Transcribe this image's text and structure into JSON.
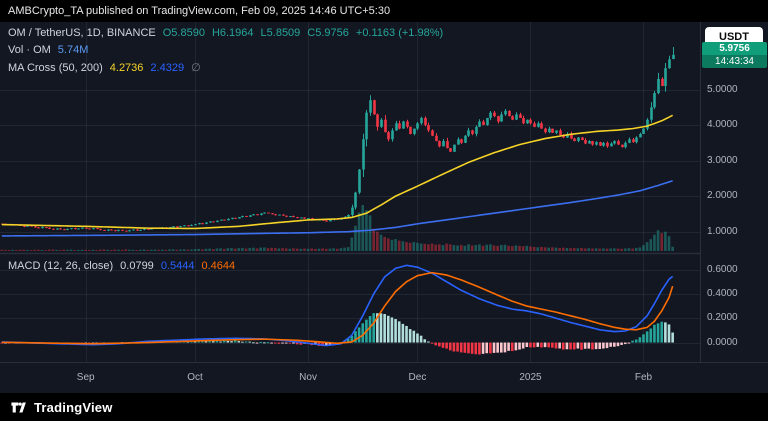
{
  "top_bar": {
    "text": "AMBCrypto_TA published on TradingView.com, Feb 09, 2025 14:46 UTC+5:30"
  },
  "legend": {
    "symbol": "OM / TetherUS, 1D, BINANCE",
    "ohlc": [
      "O5.8590",
      "H6.1964",
      "L5.8509",
      "C5.9756",
      "+0.1163 (+1.98%)"
    ],
    "volume_label": "Vol · OM",
    "volume_value": "5.74M",
    "ma_cross_label": "MA Cross (50, 200)",
    "ma50_value": "4.2736",
    "ma200_value": "2.4329",
    "ma_null": "∅"
  },
  "macd_legend": {
    "label": "MACD (12, 26, close)",
    "hist_value": "0.0799",
    "macd_value": "0.5444",
    "signal_value": "0.4644"
  },
  "price_scale": {
    "currency_button": "USDT",
    "labels": [
      "5.0000",
      "4.0000",
      "3.0000",
      "2.0000",
      "1.0000"
    ],
    "last_price": "5.9756",
    "countdown": "14:43:34"
  },
  "macd_scale": {
    "labels": [
      "0.6000",
      "0.4000",
      "0.2000",
      "0.0000"
    ]
  },
  "time_axis": {
    "labels": [
      {
        "text": "Sep",
        "day": 23
      },
      {
        "text": "Oct",
        "day": 53
      },
      {
        "text": "Nov",
        "day": 84
      },
      {
        "text": "Dec",
        "day": 114
      },
      {
        "text": "2025",
        "day": 145
      },
      {
        "text": "Feb",
        "day": 176
      }
    ]
  },
  "footer": {
    "brand": "TradingView"
  },
  "colors": {
    "bg": "#131722",
    "border": "#2a2e39",
    "text": "#d1d4dc",
    "axis_text": "#b2b5be",
    "muted": "#787b86",
    "up": "#26a69a",
    "down": "#f23645",
    "vol_up": "rgba(38,166,154,0.45)",
    "vol_down": "rgba(242,54,69,0.45)",
    "ma50": "#f5d327",
    "ma200": "#3b6ff0",
    "macd_line": "#2962ff",
    "signal_line": "#ff6d00",
    "hist_up": "#26a69a",
    "hist_up_weak": "#b2dfdb",
    "hist_down": "#f23645",
    "hist_down_weak": "#fcc6cd",
    "grid": "rgba(134,150,170,0.12)",
    "badge": "#0f9d7a",
    "badge_dark": "#0b7a5e",
    "vol_value": "#5b9cf6"
  },
  "chart_data": {
    "type": "candlestick",
    "title": "OM / TetherUS, 1D, BINANCE",
    "note": "daily [close, volume_millions] pairs, Aug 9 2024 - Feb 9 2025; values estimated from chart",
    "price_pane": {
      "ylim": [
        0.4,
        6.9
      ],
      "right_margin_days": 7,
      "last_candle": {
        "open": 5.859,
        "high": 6.1964,
        "low": 5.8509,
        "close": 5.9756
      },
      "days": [
        [
          1.22,
          1.8
        ],
        [
          1.2,
          1.5
        ],
        [
          1.18,
          1.4
        ],
        [
          1.21,
          1.6
        ],
        [
          1.19,
          1.3
        ],
        [
          1.16,
          1.7
        ],
        [
          1.14,
          1.9
        ],
        [
          1.17,
          1.4
        ],
        [
          1.15,
          1.2
        ],
        [
          1.12,
          1.6
        ],
        [
          1.1,
          1.8
        ],
        [
          1.13,
          1.3
        ],
        [
          1.11,
          1.2
        ],
        [
          1.08,
          1.9
        ],
        [
          1.06,
          2.1
        ],
        [
          1.09,
          1.5
        ],
        [
          1.07,
          1.4
        ],
        [
          1.05,
          1.8
        ],
        [
          1.08,
          1.6
        ],
        [
          1.1,
          1.9
        ],
        [
          1.07,
          1.3
        ],
        [
          1.09,
          1.4
        ],
        [
          1.11,
          1.6
        ],
        [
          1.09,
          1.5
        ],
        [
          1.07,
          1.3
        ],
        [
          1.1,
          1.7
        ],
        [
          1.08,
          1.4
        ],
        [
          1.05,
          1.9
        ],
        [
          1.03,
          2.2
        ],
        [
          1.06,
          1.6
        ],
        [
          1.04,
          1.4
        ],
        [
          1.02,
          2.0
        ],
        [
          1.05,
          1.7
        ],
        [
          1.03,
          1.5
        ],
        [
          1.01,
          2.3
        ],
        [
          1.04,
          1.8
        ],
        [
          1.06,
          1.6
        ],
        [
          1.03,
          1.4
        ],
        [
          1.05,
          1.7
        ],
        [
          1.08,
          2.1
        ],
        [
          1.06,
          1.5
        ],
        [
          1.09,
          1.8
        ],
        [
          1.11,
          2.0
        ],
        [
          1.09,
          1.6
        ],
        [
          1.12,
          1.9
        ],
        [
          1.1,
          1.5
        ],
        [
          1.13,
          2.2
        ],
        [
          1.15,
          2.4
        ],
        [
          1.13,
          1.7
        ],
        [
          1.16,
          2.0
        ],
        [
          1.18,
          2.3
        ],
        [
          1.16,
          1.8
        ],
        [
          1.19,
          2.1
        ],
        [
          1.21,
          2.5
        ],
        [
          1.24,
          2.8
        ],
        [
          1.22,
          2.2
        ],
        [
          1.26,
          3.0
        ],
        [
          1.29,
          3.2
        ],
        [
          1.27,
          2.6
        ],
        [
          1.31,
          3.4
        ],
        [
          1.34,
          3.6
        ],
        [
          1.32,
          2.9
        ],
        [
          1.36,
          3.8
        ],
        [
          1.39,
          4.0
        ],
        [
          1.37,
          3.1
        ],
        [
          1.41,
          3.9
        ],
        [
          1.44,
          4.2
        ],
        [
          1.42,
          3.3
        ],
        [
          1.46,
          4.1
        ],
        [
          1.49,
          4.4
        ],
        [
          1.47,
          3.5
        ],
        [
          1.51,
          4.6
        ],
        [
          1.54,
          4.8
        ],
        [
          1.52,
          3.7
        ],
        [
          1.49,
          4.3
        ],
        [
          1.46,
          3.9
        ],
        [
          1.48,
          3.4
        ],
        [
          1.45,
          3.8
        ],
        [
          1.42,
          3.5
        ],
        [
          1.44,
          3.0
        ],
        [
          1.41,
          3.6
        ],
        [
          1.38,
          3.2
        ],
        [
          1.4,
          2.9
        ],
        [
          1.37,
          3.3
        ],
        [
          1.38,
          3.0
        ],
        [
          1.35,
          3.4
        ],
        [
          1.32,
          2.8
        ],
        [
          1.34,
          3.1
        ],
        [
          1.31,
          3.5
        ],
        [
          1.29,
          2.9
        ],
        [
          1.33,
          3.2
        ],
        [
          1.36,
          3.6
        ],
        [
          1.34,
          3.0
        ],
        [
          1.38,
          3.8
        ],
        [
          1.42,
          4.5
        ],
        [
          1.47,
          5.2
        ],
        [
          1.68,
          18
        ],
        [
          2.1,
          34
        ],
        [
          2.75,
          52
        ],
        [
          3.6,
          62
        ],
        [
          4.35,
          55
        ],
        [
          4.7,
          48
        ],
        [
          4.3,
          30
        ],
        [
          3.95,
          26
        ],
        [
          4.15,
          22
        ],
        [
          3.8,
          19
        ],
        [
          3.6,
          17
        ],
        [
          3.85,
          15
        ],
        [
          4.05,
          16
        ],
        [
          3.9,
          14
        ],
        [
          4.1,
          13
        ],
        [
          3.95,
          12
        ],
        [
          3.75,
          11
        ],
        [
          3.9,
          12
        ],
        [
          4.05,
          11
        ],
        [
          4.2,
          10
        ],
        [
          4.0,
          9.5
        ],
        [
          3.85,
          9
        ],
        [
          3.7,
          10
        ],
        [
          3.55,
          8.5
        ],
        [
          3.4,
          9
        ],
        [
          3.55,
          8
        ],
        [
          3.35,
          10
        ],
        [
          3.25,
          9
        ],
        [
          3.45,
          8
        ],
        [
          3.6,
          7.5
        ],
        [
          3.5,
          8
        ],
        [
          3.7,
          7
        ],
        [
          3.85,
          9
        ],
        [
          3.75,
          7.5
        ],
        [
          3.95,
          8
        ],
        [
          4.1,
          9
        ],
        [
          4.0,
          7
        ],
        [
          4.2,
          8.5
        ],
        [
          4.35,
          9
        ],
        [
          4.25,
          7.5
        ],
        [
          4.1,
          7
        ],
        [
          4.3,
          8
        ],
        [
          4.4,
          8.5
        ],
        [
          4.25,
          7
        ],
        [
          4.15,
          6.5
        ],
        [
          4.3,
          7.5
        ],
        [
          4.2,
          7
        ],
        [
          4.05,
          6.5
        ],
        [
          4.15,
          7
        ],
        [
          4.05,
          6
        ],
        [
          3.95,
          5.5
        ],
        [
          4.05,
          5
        ],
        [
          3.9,
          5.5
        ],
        [
          3.8,
          5
        ],
        [
          3.9,
          4.5
        ],
        [
          3.78,
          5
        ],
        [
          3.85,
          4.5
        ],
        [
          3.72,
          4
        ],
        [
          3.65,
          4.5
        ],
        [
          3.75,
          4
        ],
        [
          3.62,
          3.8
        ],
        [
          3.55,
          4.2
        ],
        [
          3.65,
          3.6
        ],
        [
          3.58,
          4
        ],
        [
          3.48,
          3.5
        ],
        [
          3.55,
          3.8
        ],
        [
          3.45,
          3.4
        ],
        [
          3.52,
          3.6
        ],
        [
          3.42,
          3.3
        ],
        [
          3.5,
          3.5
        ],
        [
          3.4,
          3.2
        ],
        [
          3.48,
          3.4
        ],
        [
          3.55,
          3.6
        ],
        [
          3.45,
          3.2
        ],
        [
          3.38,
          3.0
        ],
        [
          3.5,
          3.4
        ],
        [
          3.6,
          3.8
        ],
        [
          3.52,
          3.3
        ],
        [
          3.65,
          4.2
        ],
        [
          3.75,
          4.8
        ],
        [
          3.9,
          8
        ],
        [
          4.15,
          12
        ],
        [
          4.5,
          16
        ],
        [
          4.9,
          22
        ],
        [
          5.3,
          28
        ],
        [
          5.1,
          24
        ],
        [
          5.6,
          26
        ],
        [
          5.85,
          20
        ],
        [
          5.9756,
          5.74
        ]
      ],
      "ma50_points": [
        [
          0,
          1.2
        ],
        [
          23,
          1.15
        ],
        [
          40,
          1.1
        ],
        [
          53,
          1.09
        ],
        [
          65,
          1.15
        ],
        [
          75,
          1.25
        ],
        [
          84,
          1.33
        ],
        [
          92,
          1.36
        ],
        [
          96,
          1.4
        ],
        [
          100,
          1.52
        ],
        [
          104,
          1.75
        ],
        [
          108,
          2.0
        ],
        [
          114,
          2.28
        ],
        [
          121,
          2.62
        ],
        [
          128,
          2.95
        ],
        [
          135,
          3.22
        ],
        [
          142,
          3.45
        ],
        [
          149,
          3.62
        ],
        [
          156,
          3.74
        ],
        [
          163,
          3.82
        ],
        [
          169,
          3.86
        ],
        [
          173,
          3.9
        ],
        [
          177,
          3.97
        ],
        [
          181,
          4.12
        ],
        [
          184,
          4.2736
        ]
      ],
      "ma200_points": [
        [
          0,
          0.88
        ],
        [
          30,
          0.9
        ],
        [
          53,
          0.92
        ],
        [
          70,
          0.95
        ],
        [
          84,
          0.97
        ],
        [
          95,
          1.0
        ],
        [
          101,
          1.04
        ],
        [
          108,
          1.12
        ],
        [
          114,
          1.22
        ],
        [
          121,
          1.32
        ],
        [
          128,
          1.42
        ],
        [
          135,
          1.52
        ],
        [
          142,
          1.62
        ],
        [
          149,
          1.72
        ],
        [
          156,
          1.82
        ],
        [
          163,
          1.93
        ],
        [
          169,
          2.03
        ],
        [
          175,
          2.15
        ],
        [
          180,
          2.3
        ],
        [
          184,
          2.4329
        ]
      ]
    },
    "macd_pane": {
      "ylim": [
        -0.16,
        0.72
      ],
      "current": {
        "hist": 0.0799,
        "macd": 0.5444,
        "signal": 0.4644
      },
      "macd_points": [
        [
          0,
          0.005
        ],
        [
          10,
          -0.005
        ],
        [
          18,
          -0.012
        ],
        [
          25,
          -0.018
        ],
        [
          32,
          -0.01
        ],
        [
          40,
          0.01
        ],
        [
          48,
          0.02
        ],
        [
          56,
          0.03
        ],
        [
          64,
          0.035
        ],
        [
          72,
          0.03
        ],
        [
          78,
          0.015
        ],
        [
          84,
          -0.005
        ],
        [
          89,
          -0.025
        ],
        [
          93,
          -0.01
        ],
        [
          96,
          0.06
        ],
        [
          99,
          0.22
        ],
        [
          102,
          0.4
        ],
        [
          105,
          0.54
        ],
        [
          108,
          0.61
        ],
        [
          111,
          0.635
        ],
        [
          114,
          0.62
        ],
        [
          118,
          0.57
        ],
        [
          122,
          0.5
        ],
        [
          126,
          0.43
        ],
        [
          131,
          0.36
        ],
        [
          136,
          0.305
        ],
        [
          140,
          0.275
        ],
        [
          144,
          0.26
        ],
        [
          148,
          0.235
        ],
        [
          152,
          0.2
        ],
        [
          156,
          0.165
        ],
        [
          160,
          0.135
        ],
        [
          164,
          0.105
        ],
        [
          168,
          0.09
        ],
        [
          171,
          0.095
        ],
        [
          174,
          0.13
        ],
        [
          177,
          0.22
        ],
        [
          179,
          0.32
        ],
        [
          181,
          0.43
        ],
        [
          183,
          0.52
        ],
        [
          184,
          0.5444
        ]
      ],
      "signal_points": [
        [
          0,
          0.002
        ],
        [
          12,
          -0.004
        ],
        [
          25,
          -0.01
        ],
        [
          40,
          0.0
        ],
        [
          52,
          0.012
        ],
        [
          62,
          0.022
        ],
        [
          72,
          0.028
        ],
        [
          80,
          0.02
        ],
        [
          86,
          0.008
        ],
        [
          92,
          -0.006
        ],
        [
          96,
          0.005
        ],
        [
          99,
          0.06
        ],
        [
          102,
          0.16
        ],
        [
          105,
          0.3
        ],
        [
          108,
          0.42
        ],
        [
          111,
          0.5
        ],
        [
          114,
          0.55
        ],
        [
          118,
          0.575
        ],
        [
          122,
          0.555
        ],
        [
          126,
          0.515
        ],
        [
          131,
          0.455
        ],
        [
          136,
          0.39
        ],
        [
          140,
          0.34
        ],
        [
          144,
          0.3
        ],
        [
          148,
          0.275
        ],
        [
          152,
          0.25
        ],
        [
          156,
          0.22
        ],
        [
          160,
          0.19
        ],
        [
          164,
          0.155
        ],
        [
          168,
          0.125
        ],
        [
          171,
          0.11
        ],
        [
          174,
          0.105
        ],
        [
          177,
          0.125
        ],
        [
          179,
          0.175
        ],
        [
          181,
          0.26
        ],
        [
          183,
          0.37
        ],
        [
          184,
          0.4644
        ]
      ]
    }
  }
}
